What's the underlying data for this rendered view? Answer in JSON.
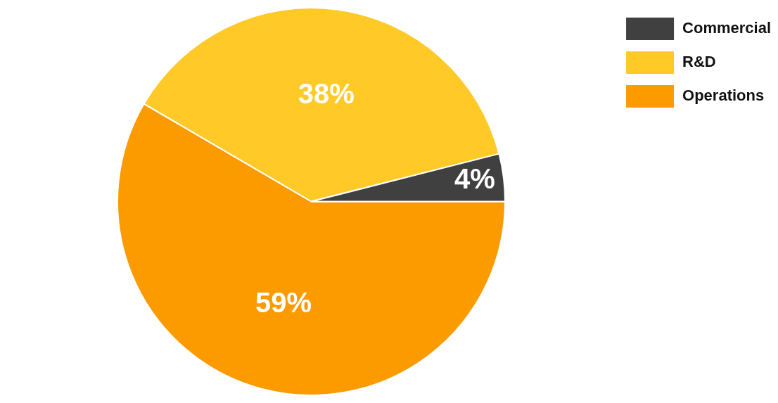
{
  "chart_data": {
    "type": "pie",
    "categories": [
      "Commercial",
      "R&D",
      "Operations"
    ],
    "values": [
      4,
      38,
      59
    ],
    "colors": [
      "#404040",
      "#ffca28",
      "#fb9b00"
    ],
    "value_labels": [
      "4%",
      "38%",
      "59%"
    ],
    "legend": "top right"
  }
}
